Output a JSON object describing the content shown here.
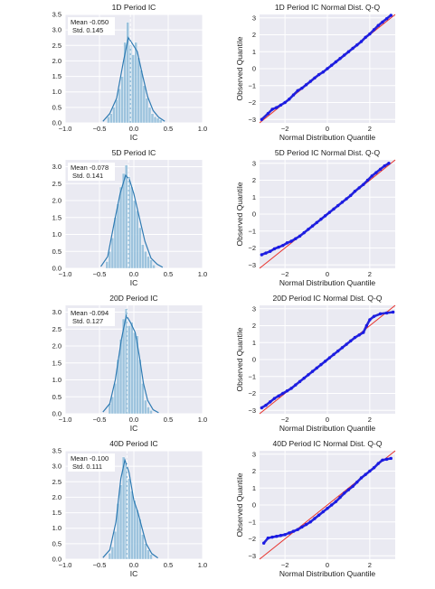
{
  "chart_data": [
    {
      "type": "histogram",
      "title": "1D Period IC",
      "xlabel": "IC",
      "xlim": [
        -1.0,
        1.0
      ],
      "ylim": [
        0,
        3.5
      ],
      "xticks": [
        "−1.0",
        "−0.5",
        "0.0",
        "0.5",
        "1.0"
      ],
      "yticks": [
        "0.0",
        "0.5",
        "1.0",
        "1.5",
        "2.0",
        "2.5",
        "3.0",
        "3.5"
      ],
      "stats": {
        "mean_label": "Mean -0.050",
        "std_label": "Std. 0.145",
        "mean": -0.05,
        "std": 0.145
      },
      "bins": [
        {
          "x": -0.37,
          "y": 0.2
        },
        {
          "x": -0.33,
          "y": 0.3
        },
        {
          "x": -0.29,
          "y": 0.5
        },
        {
          "x": -0.25,
          "y": 0.75
        },
        {
          "x": -0.21,
          "y": 1.1
        },
        {
          "x": -0.17,
          "y": 1.5
        },
        {
          "x": -0.13,
          "y": 2.6
        },
        {
          "x": -0.09,
          "y": 3.25
        },
        {
          "x": -0.05,
          "y": 2.5
        },
        {
          "x": -0.01,
          "y": 2.2
        },
        {
          "x": 0.03,
          "y": 2.6
        },
        {
          "x": 0.07,
          "y": 2.1
        },
        {
          "x": 0.11,
          "y": 1.7
        },
        {
          "x": 0.15,
          "y": 1.2
        },
        {
          "x": 0.19,
          "y": 0.8
        },
        {
          "x": 0.23,
          "y": 0.5
        },
        {
          "x": 0.27,
          "y": 0.3
        },
        {
          "x": 0.31,
          "y": 0.2
        },
        {
          "x": 0.35,
          "y": 0.15
        },
        {
          "x": 0.39,
          "y": 0.1
        }
      ],
      "kde": [
        [
          -0.45,
          0.05
        ],
        [
          -0.35,
          0.3
        ],
        [
          -0.25,
          0.8
        ],
        [
          -0.15,
          2.0
        ],
        [
          -0.08,
          2.75
        ],
        [
          -0.02,
          2.55
        ],
        [
          0.05,
          2.3
        ],
        [
          0.12,
          1.6
        ],
        [
          0.2,
          0.85
        ],
        [
          0.28,
          0.4
        ],
        [
          0.36,
          0.18
        ],
        [
          0.45,
          0.05
        ]
      ]
    },
    {
      "type": "qq",
      "title": "1D Period IC Normal Dist. Q-Q",
      "xlabel": "Normal Distribution Quantile",
      "ylabel": "Observed Quantile",
      "xlim": [
        -3.2,
        3.2
      ],
      "ylim": [
        -3.2,
        3.2
      ],
      "xticks": [
        "−2",
        "0",
        "2"
      ],
      "yticks": [
        "−3",
        "−2",
        "−1",
        "0",
        "1",
        "2",
        "3"
      ],
      "points": [
        [
          -3.1,
          -3.0
        ],
        [
          -2.8,
          -2.65
        ],
        [
          -2.6,
          -2.4
        ],
        [
          -2.4,
          -2.3
        ],
        [
          -2.2,
          -2.15
        ],
        [
          -2.0,
          -2.0
        ],
        [
          -1.8,
          -1.8
        ],
        [
          -1.6,
          -1.55
        ],
        [
          -1.4,
          -1.3
        ],
        [
          -1.2,
          -1.15
        ],
        [
          -1.0,
          -0.95
        ],
        [
          -0.8,
          -0.75
        ],
        [
          -0.6,
          -0.55
        ],
        [
          -0.4,
          -0.35
        ],
        [
          -0.2,
          -0.2
        ],
        [
          0.0,
          0.0
        ],
        [
          0.2,
          0.2
        ],
        [
          0.4,
          0.4
        ],
        [
          0.6,
          0.6
        ],
        [
          0.8,
          0.8
        ],
        [
          1.0,
          1.0
        ],
        [
          1.2,
          1.2
        ],
        [
          1.4,
          1.4
        ],
        [
          1.6,
          1.6
        ],
        [
          1.8,
          1.85
        ],
        [
          2.0,
          2.05
        ],
        [
          2.2,
          2.3
        ],
        [
          2.4,
          2.55
        ],
        [
          2.6,
          2.75
        ],
        [
          2.8,
          2.95
        ],
        [
          3.0,
          3.15
        ]
      ]
    },
    {
      "type": "histogram",
      "title": "5D Period IC",
      "xlabel": "IC",
      "xlim": [
        -1.0,
        1.0
      ],
      "ylim": [
        0,
        3.2
      ],
      "xticks": [
        "−1.0",
        "−0.5",
        "0.0",
        "0.5",
        "1.0"
      ],
      "yticks": [
        "0.0",
        "0.5",
        "1.0",
        "1.5",
        "2.0",
        "2.5",
        "3.0"
      ],
      "stats": {
        "mean_label": "Mean -0.078",
        "std_label": "Std. 0.141",
        "mean": -0.078,
        "std": 0.141
      },
      "bins": [
        {
          "x": -0.39,
          "y": 0.2
        },
        {
          "x": -0.35,
          "y": 0.5
        },
        {
          "x": -0.31,
          "y": 0.9
        },
        {
          "x": -0.27,
          "y": 1.5
        },
        {
          "x": -0.23,
          "y": 1.9
        },
        {
          "x": -0.19,
          "y": 2.4
        },
        {
          "x": -0.15,
          "y": 2.8
        },
        {
          "x": -0.11,
          "y": 3.05
        },
        {
          "x": -0.07,
          "y": 2.7
        },
        {
          "x": -0.03,
          "y": 2.4
        },
        {
          "x": 0.01,
          "y": 2.0
        },
        {
          "x": 0.05,
          "y": 1.7
        },
        {
          "x": 0.09,
          "y": 1.2
        },
        {
          "x": 0.13,
          "y": 0.7
        },
        {
          "x": 0.17,
          "y": 0.5
        },
        {
          "x": 0.21,
          "y": 0.35
        },
        {
          "x": 0.25,
          "y": 0.25
        },
        {
          "x": 0.29,
          "y": 0.1
        }
      ],
      "kde": [
        [
          -0.48,
          0.05
        ],
        [
          -0.38,
          0.35
        ],
        [
          -0.28,
          1.4
        ],
        [
          -0.2,
          2.2
        ],
        [
          -0.12,
          2.75
        ],
        [
          -0.06,
          2.6
        ],
        [
          0.0,
          2.2
        ],
        [
          0.08,
          1.5
        ],
        [
          0.16,
          0.8
        ],
        [
          0.25,
          0.3
        ],
        [
          0.34,
          0.12
        ],
        [
          0.42,
          0.03
        ]
      ]
    },
    {
      "type": "qq",
      "title": "5D Period IC Normal Dist. Q-Q",
      "xlabel": "Normal Distribution Quantile",
      "ylabel": "Observed Quantile",
      "xlim": [
        -3.2,
        3.2
      ],
      "ylim": [
        -3.2,
        3.2
      ],
      "xticks": [
        "−2",
        "0",
        "2"
      ],
      "yticks": [
        "−3",
        "−2",
        "−1",
        "0",
        "1",
        "2",
        "3"
      ],
      "points": [
        [
          -3.1,
          -2.4
        ],
        [
          -2.9,
          -2.3
        ],
        [
          -2.7,
          -2.2
        ],
        [
          -2.5,
          -2.05
        ],
        [
          -2.3,
          -1.95
        ],
        [
          -2.1,
          -1.85
        ],
        [
          -1.9,
          -1.7
        ],
        [
          -1.7,
          -1.6
        ],
        [
          -1.5,
          -1.45
        ],
        [
          -1.3,
          -1.3
        ],
        [
          -1.1,
          -1.1
        ],
        [
          -0.9,
          -0.9
        ],
        [
          -0.7,
          -0.7
        ],
        [
          -0.5,
          -0.5
        ],
        [
          -0.3,
          -0.3
        ],
        [
          -0.1,
          -0.1
        ],
        [
          0.1,
          0.1
        ],
        [
          0.3,
          0.3
        ],
        [
          0.5,
          0.5
        ],
        [
          0.7,
          0.7
        ],
        [
          0.9,
          0.9
        ],
        [
          1.1,
          1.1
        ],
        [
          1.3,
          1.35
        ],
        [
          1.5,
          1.55
        ],
        [
          1.7,
          1.75
        ],
        [
          1.9,
          2.0
        ],
        [
          2.1,
          2.25
        ],
        [
          2.3,
          2.45
        ],
        [
          2.5,
          2.65
        ],
        [
          2.7,
          2.85
        ],
        [
          2.9,
          3.0
        ]
      ]
    },
    {
      "type": "histogram",
      "title": "20D Period IC",
      "xlabel": "IC",
      "xlim": [
        -1.0,
        1.0
      ],
      "ylim": [
        0,
        3.2
      ],
      "xticks": [
        "−1.0",
        "−0.5",
        "0.0",
        "0.5",
        "1.0"
      ],
      "yticks": [
        "0.0",
        "0.5",
        "1.0",
        "1.5",
        "2.0",
        "2.5",
        "3.0"
      ],
      "stats": {
        "mean_label": "Mean -0.094",
        "std_label": "Std. 0.127",
        "mean": -0.094,
        "std": 0.127
      },
      "bins": [
        {
          "x": -0.35,
          "y": 0.3
        },
        {
          "x": -0.31,
          "y": 0.5
        },
        {
          "x": -0.27,
          "y": 0.9
        },
        {
          "x": -0.23,
          "y": 1.6
        },
        {
          "x": -0.19,
          "y": 2.2
        },
        {
          "x": -0.15,
          "y": 2.8
        },
        {
          "x": -0.11,
          "y": 3.1
        },
        {
          "x": -0.07,
          "y": 2.6
        },
        {
          "x": -0.03,
          "y": 2.7
        },
        {
          "x": 0.01,
          "y": 2.4
        },
        {
          "x": 0.05,
          "y": 2.3
        },
        {
          "x": 0.09,
          "y": 1.6
        },
        {
          "x": 0.13,
          "y": 0.9
        },
        {
          "x": 0.17,
          "y": 0.4
        },
        {
          "x": 0.21,
          "y": 0.2
        },
        {
          "x": 0.25,
          "y": 0.1
        }
      ],
      "kde": [
        [
          -0.45,
          0.05
        ],
        [
          -0.35,
          0.3
        ],
        [
          -0.27,
          1.0
        ],
        [
          -0.18,
          2.2
        ],
        [
          -0.11,
          2.9
        ],
        [
          -0.05,
          2.7
        ],
        [
          0.02,
          2.4
        ],
        [
          0.08,
          1.7
        ],
        [
          0.14,
          0.9
        ],
        [
          0.2,
          0.4
        ],
        [
          0.28,
          0.12
        ],
        [
          0.36,
          0.03
        ]
      ]
    },
    {
      "type": "qq",
      "title": "20D Period IC Normal Dist. Q-Q",
      "xlabel": "Normal Distribution Quantile",
      "ylabel": "Observed Quantile",
      "xlim": [
        -3.2,
        3.2
      ],
      "ylim": [
        -3.2,
        3.2
      ],
      "xticks": [
        "−2",
        "0",
        "2"
      ],
      "yticks": [
        "−3",
        "−2",
        "−1",
        "0",
        "1",
        "2",
        "3"
      ],
      "points": [
        [
          -3.1,
          -2.85
        ],
        [
          -2.9,
          -2.7
        ],
        [
          -2.7,
          -2.5
        ],
        [
          -2.5,
          -2.3
        ],
        [
          -2.3,
          -2.15
        ],
        [
          -2.1,
          -2.0
        ],
        [
          -1.9,
          -1.85
        ],
        [
          -1.7,
          -1.7
        ],
        [
          -1.5,
          -1.5
        ],
        [
          -1.3,
          -1.3
        ],
        [
          -1.1,
          -1.1
        ],
        [
          -0.9,
          -0.9
        ],
        [
          -0.7,
          -0.7
        ],
        [
          -0.5,
          -0.5
        ],
        [
          -0.3,
          -0.3
        ],
        [
          -0.1,
          -0.1
        ],
        [
          0.1,
          0.1
        ],
        [
          0.3,
          0.3
        ],
        [
          0.5,
          0.5
        ],
        [
          0.7,
          0.7
        ],
        [
          0.9,
          0.9
        ],
        [
          1.1,
          1.1
        ],
        [
          1.3,
          1.3
        ],
        [
          1.5,
          1.45
        ],
        [
          1.7,
          1.6
        ],
        [
          1.85,
          2.0
        ],
        [
          2.0,
          2.35
        ],
        [
          2.2,
          2.55
        ],
        [
          2.5,
          2.7
        ],
        [
          2.8,
          2.75
        ],
        [
          3.1,
          2.8
        ]
      ]
    },
    {
      "type": "histogram",
      "title": "40D Period IC",
      "xlabel": "IC",
      "xlim": [
        -1.0,
        1.0
      ],
      "ylim": [
        0,
        3.5
      ],
      "xticks": [
        "−1.0",
        "−0.5",
        "0.0",
        "0.5",
        "1.0"
      ],
      "yticks": [
        "0.0",
        "0.5",
        "1.0",
        "1.5",
        "2.0",
        "2.5",
        "3.0",
        "3.5"
      ],
      "stats": {
        "mean_label": "Mean -0.100",
        "std_label": "Std. 0.111",
        "mean": -0.1,
        "std": 0.111
      },
      "bins": [
        {
          "x": -0.35,
          "y": 0.2
        },
        {
          "x": -0.31,
          "y": 0.4
        },
        {
          "x": -0.27,
          "y": 0.9
        },
        {
          "x": -0.23,
          "y": 1.8
        },
        {
          "x": -0.19,
          "y": 2.4
        },
        {
          "x": -0.15,
          "y": 3.3
        },
        {
          "x": -0.11,
          "y": 3.1
        },
        {
          "x": -0.07,
          "y": 2.6
        },
        {
          "x": -0.03,
          "y": 2.2
        },
        {
          "x": 0.01,
          "y": 1.9
        },
        {
          "x": 0.05,
          "y": 1.6
        },
        {
          "x": 0.09,
          "y": 1.3
        },
        {
          "x": 0.13,
          "y": 0.8
        },
        {
          "x": 0.17,
          "y": 0.5
        },
        {
          "x": 0.21,
          "y": 0.3
        },
        {
          "x": 0.25,
          "y": 0.15
        }
      ],
      "kde": [
        [
          -0.45,
          0.05
        ],
        [
          -0.35,
          0.3
        ],
        [
          -0.26,
          1.2
        ],
        [
          -0.19,
          2.6
        ],
        [
          -0.13,
          3.2
        ],
        [
          -0.07,
          2.8
        ],
        [
          0.0,
          1.9
        ],
        [
          0.06,
          1.5
        ],
        [
          0.12,
          1.0
        ],
        [
          0.18,
          0.5
        ],
        [
          0.26,
          0.18
        ],
        [
          0.35,
          0.04
        ]
      ]
    },
    {
      "type": "qq",
      "title": "40D Period IC Normal Dist. Q-Q",
      "xlabel": "Normal Distribution Quantile",
      "ylabel": "Observed Quantile",
      "xlim": [
        -3.2,
        3.2
      ],
      "ylim": [
        -3.2,
        3.2
      ],
      "xticks": [
        "−2",
        "0",
        "2"
      ],
      "yticks": [
        "−3",
        "−2",
        "−1",
        "0",
        "1",
        "2",
        "3"
      ],
      "points": [
        [
          -3.0,
          -2.25
        ],
        [
          -2.8,
          -1.95
        ],
        [
          -2.6,
          -1.9
        ],
        [
          -2.4,
          -1.85
        ],
        [
          -2.2,
          -1.8
        ],
        [
          -2.0,
          -1.75
        ],
        [
          -1.8,
          -1.65
        ],
        [
          -1.6,
          -1.55
        ],
        [
          -1.4,
          -1.45
        ],
        [
          -1.2,
          -1.3
        ],
        [
          -1.0,
          -1.15
        ],
        [
          -0.8,
          -1.0
        ],
        [
          -0.6,
          -0.8
        ],
        [
          -0.4,
          -0.6
        ],
        [
          -0.2,
          -0.4
        ],
        [
          0.0,
          -0.2
        ],
        [
          0.2,
          0.0
        ],
        [
          0.4,
          0.2
        ],
        [
          0.6,
          0.45
        ],
        [
          0.8,
          0.7
        ],
        [
          1.0,
          0.9
        ],
        [
          1.2,
          1.1
        ],
        [
          1.4,
          1.35
        ],
        [
          1.6,
          1.6
        ],
        [
          1.8,
          1.8
        ],
        [
          2.0,
          2.0
        ],
        [
          2.2,
          2.2
        ],
        [
          2.4,
          2.45
        ],
        [
          2.6,
          2.65
        ],
        [
          2.8,
          2.7
        ],
        [
          3.0,
          2.75
        ]
      ]
    }
  ]
}
